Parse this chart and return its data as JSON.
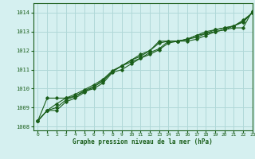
{
  "title": "Graphe pression niveau de la mer (hPa)",
  "bg_color": "#d5f0f0",
  "grid_color": "#b0d8d8",
  "line_color": "#1a5e1a",
  "xlim": [
    -0.5,
    23
  ],
  "ylim": [
    1007.8,
    1014.5
  ],
  "xticks": [
    0,
    1,
    2,
    3,
    4,
    5,
    6,
    7,
    8,
    9,
    10,
    11,
    12,
    13,
    14,
    15,
    16,
    17,
    18,
    19,
    20,
    21,
    22,
    23
  ],
  "yticks": [
    1008,
    1009,
    1010,
    1011,
    1012,
    1013,
    1014
  ],
  "series": [
    [
      1008.3,
      1009.5,
      1009.5,
      1009.5,
      1009.6,
      1009.9,
      1010.1,
      1010.4,
      1010.9,
      1011.2,
      1011.5,
      1011.7,
      1012.0,
      1012.5,
      1012.5,
      1012.5,
      1012.5,
      1012.6,
      1012.8,
      1013.0,
      1013.1,
      1013.2,
      1013.2,
      1014.1
    ],
    [
      1008.3,
      1008.85,
      1008.85,
      1009.3,
      1009.5,
      1009.8,
      1010.1,
      1010.45,
      1010.9,
      1011.2,
      1011.5,
      1011.8,
      1012.0,
      1012.4,
      1012.5,
      1012.5,
      1012.6,
      1012.8,
      1012.9,
      1013.0,
      1013.1,
      1013.3,
      1013.5,
      1014.0
    ],
    [
      1008.3,
      1008.85,
      1009.2,
      1009.5,
      1009.7,
      1009.95,
      1010.2,
      1010.5,
      1010.95,
      1011.2,
      1011.4,
      1011.6,
      1011.8,
      1012.05,
      1012.4,
      1012.5,
      1012.6,
      1012.8,
      1013.0,
      1013.1,
      1013.2,
      1013.3,
      1013.55,
      1014.0
    ],
    [
      1008.3,
      1008.85,
      1009.0,
      1009.4,
      1009.6,
      1009.85,
      1010.0,
      1010.3,
      1010.85,
      1011.0,
      1011.3,
      1011.6,
      1011.9,
      1012.1,
      1012.5,
      1012.5,
      1012.6,
      1012.7,
      1012.9,
      1013.1,
      1013.2,
      1013.3,
      1013.6,
      1014.0
    ]
  ]
}
